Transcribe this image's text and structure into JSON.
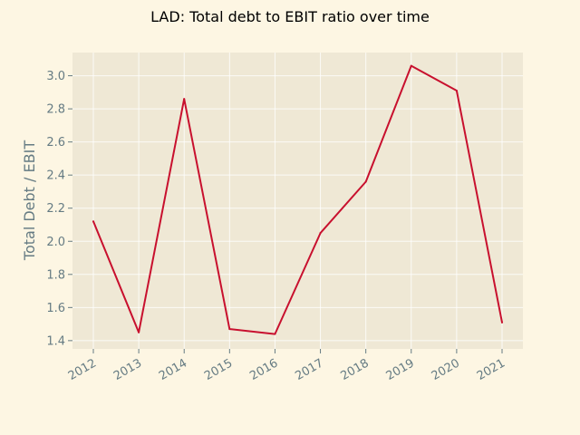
{
  "chart_data": {
    "type": "line",
    "title": "LAD: Total debt to EBIT ratio over time",
    "xlabel": "",
    "ylabel": "Total Debt / EBIT",
    "categories": [
      "2012",
      "2013",
      "2014",
      "2015",
      "2016",
      "2017",
      "2018",
      "2019",
      "2020",
      "2021"
    ],
    "series": [
      {
        "values": [
          2.12,
          1.45,
          2.86,
          1.47,
          1.44,
          2.05,
          2.36,
          3.06,
          2.91,
          1.51
        ]
      }
    ],
    "ylim": [
      1.35,
      3.14
    ],
    "yticks": [
      "1.4",
      "1.6",
      "1.8",
      "2.0",
      "2.2",
      "2.4",
      "2.6",
      "2.8",
      "3.0"
    ],
    "grid": true,
    "colors": {
      "line": "#c8102e",
      "plot_bg": "#efe8d5",
      "figure_bg": "#fdf6e3",
      "tick_text": "#657b83"
    }
  }
}
